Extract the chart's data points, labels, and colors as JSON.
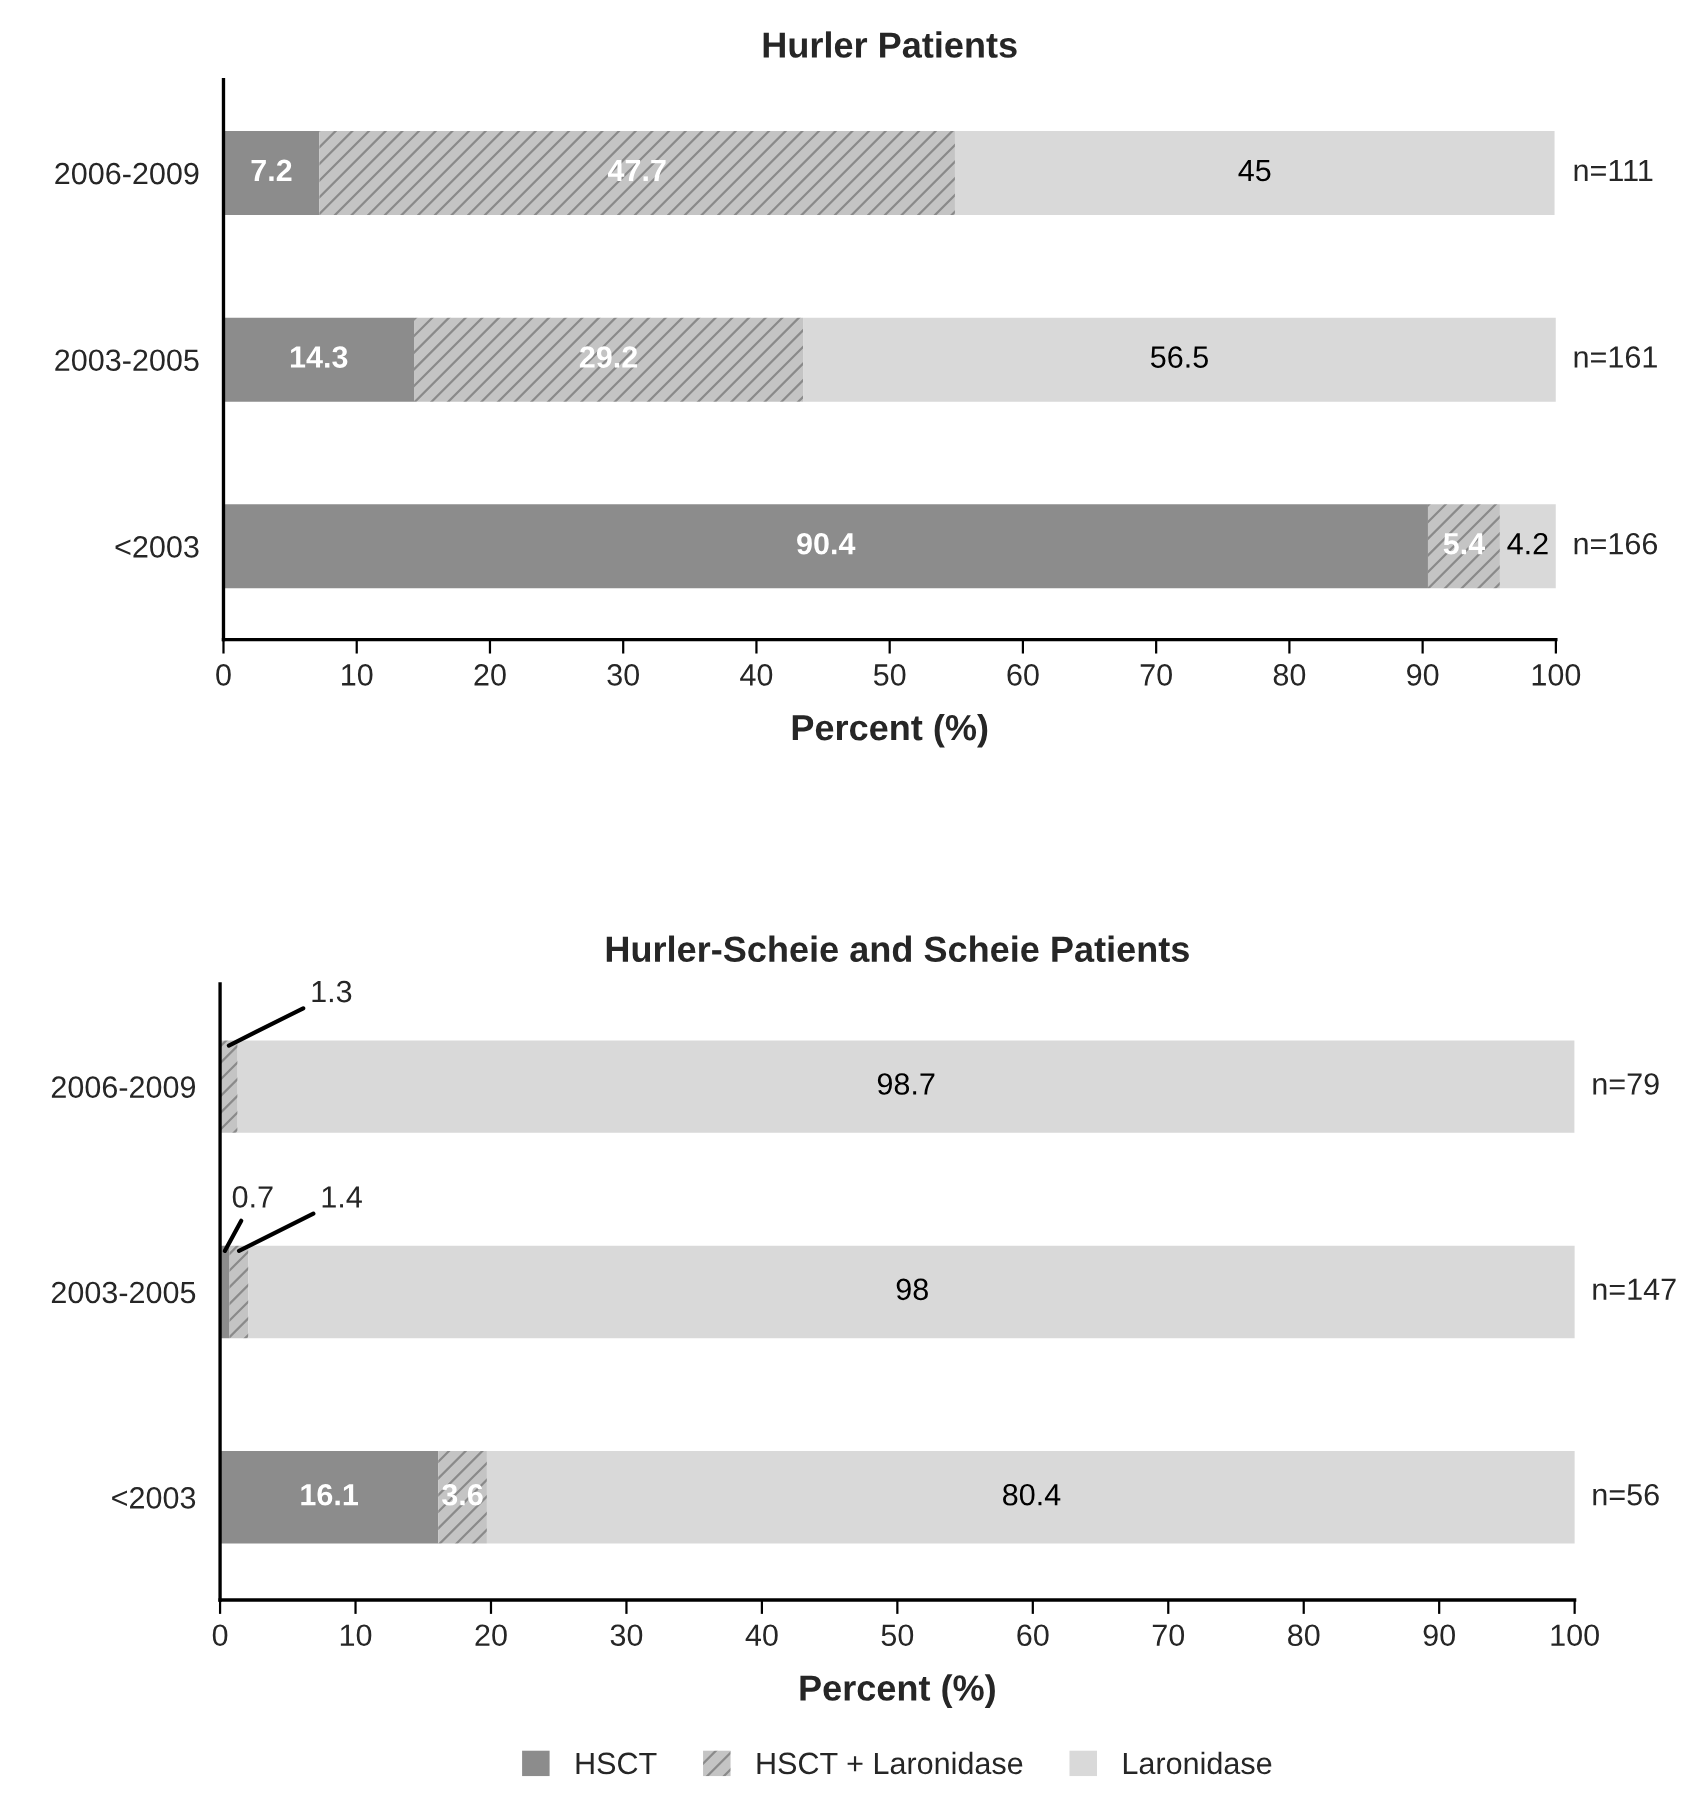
{
  "chart_data": [
    {
      "type": "bar",
      "orientation": "horizontal",
      "stacked": true,
      "title": "Hurler Patients",
      "xlabel": "Percent (%)",
      "categories": [
        "2006-2009",
        "2003-2005",
        "<2003"
      ],
      "xlim": [
        0,
        100
      ],
      "xticks": [
        0,
        10,
        20,
        30,
        40,
        50,
        60,
        70,
        80,
        90,
        100
      ],
      "grid": false,
      "legend": false,
      "series": [
        {
          "color": "#8c8c8c",
          "values": [
            7.2,
            14.3,
            90.4
          ],
          "value_labels": [
            "7.2",
            "14.3",
            "90.4"
          ]
        },
        {
          "color": "#c4c4c4",
          "values": [
            47.7,
            29.2,
            5.4
          ],
          "value_labels": [
            "47.7",
            "29.2",
            "5.4"
          ]
        },
        {
          "color": "#d9d9d9",
          "values": [
            45,
            56.5,
            4.2
          ],
          "value_labels": [
            "45",
            "56.5",
            "4.2"
          ]
        }
      ],
      "annotations": [
        "n=111",
        "n=161",
        "n=166"
      ]
    },
    {
      "type": "bar",
      "orientation": "horizontal",
      "stacked": true,
      "title": "Hurler-Scheie and Scheie Patients",
      "xlabel": "Percent (%)",
      "categories": [
        "2006-2009",
        "2003-2005",
        "<2003"
      ],
      "xlim": [
        0,
        100
      ],
      "xticks": [
        0,
        10,
        20,
        30,
        40,
        50,
        60,
        70,
        80,
        90,
        100
      ],
      "grid": false,
      "legend": "bottom",
      "series": [
        {
          "name": "HSCT",
          "color": "#8c8c8c",
          "values": [
            0,
            0.7,
            16.1
          ],
          "value_labels": [
            null,
            "0.7",
            "16.1"
          ]
        },
        {
          "name": "HSCT + Laronidase",
          "color": "#c4c4c4",
          "values": [
            1.3,
            1.4,
            3.6
          ],
          "value_labels": [
            "1.3",
            "1.4",
            "3.6"
          ]
        },
        {
          "name": "Laronidase",
          "color": "#d9d9d9",
          "values": [
            98.7,
            98,
            80.4
          ],
          "value_labels": [
            "98.7",
            "98",
            "80.4"
          ]
        }
      ],
      "annotations": [
        "n=79",
        "n=147",
        "n=56"
      ]
    }
  ]
}
